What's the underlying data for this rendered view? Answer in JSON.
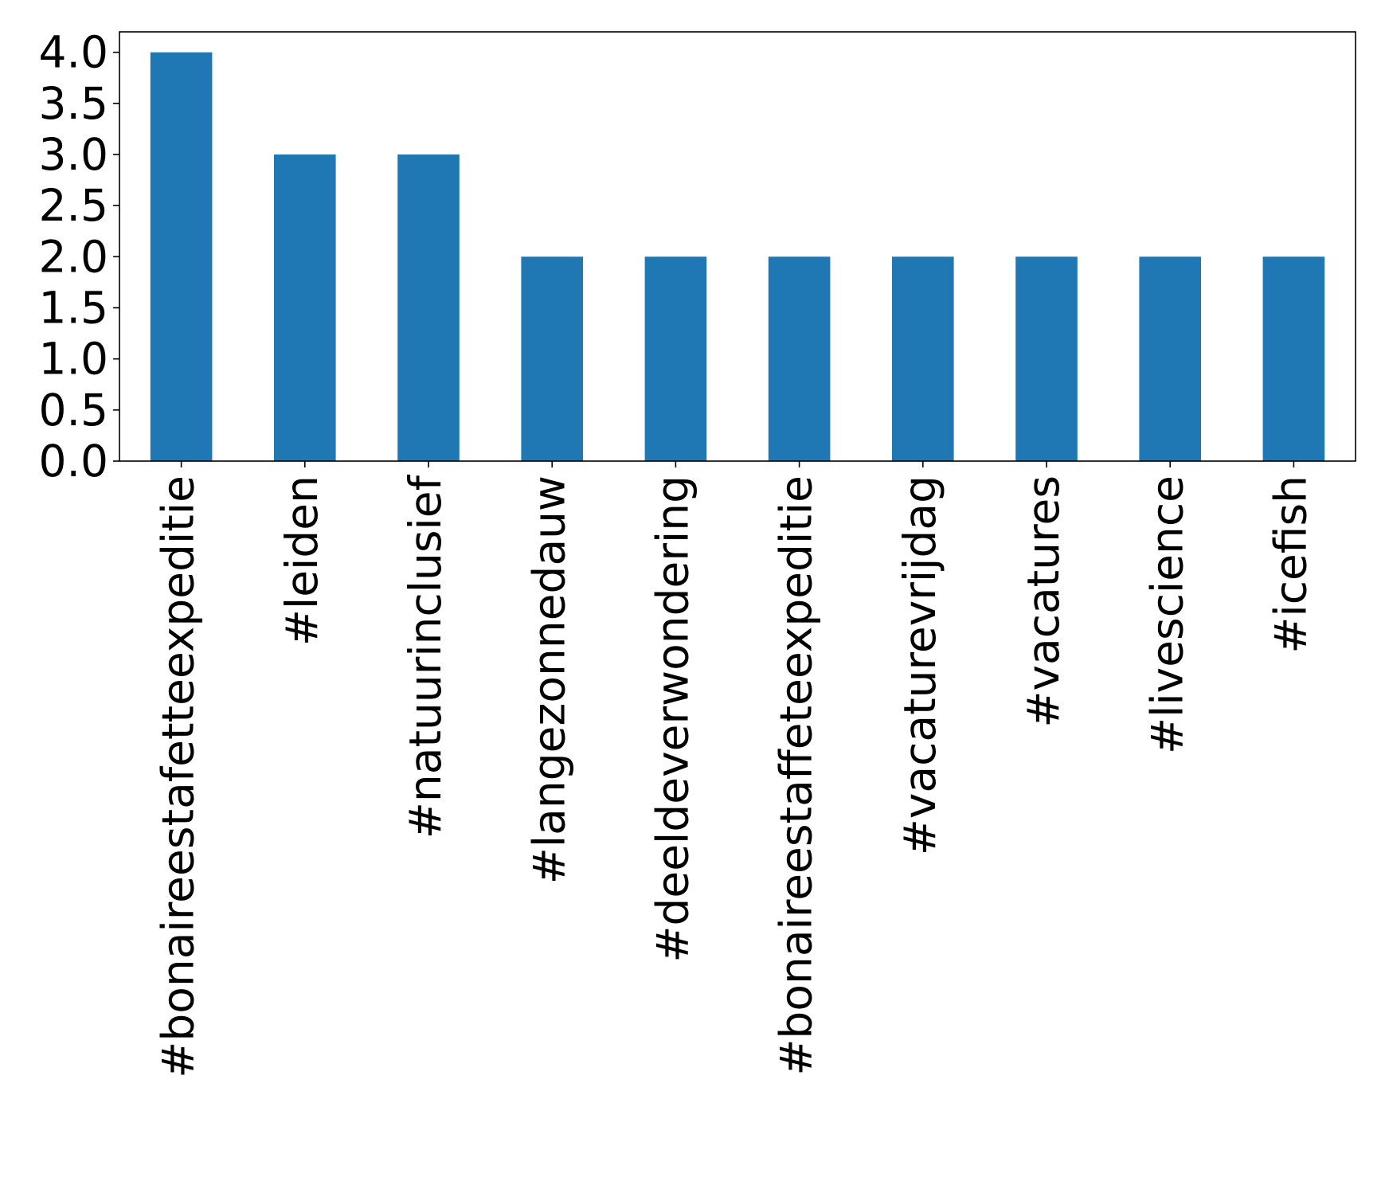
{
  "chart_data": {
    "type": "bar",
    "categories": [
      "#bonaireestafetteexpeditie",
      "#leiden",
      "#natuurinclusief",
      "#langezonnedauw",
      "#deeldeverwondering",
      "#bonaireestaffeteexpeditie",
      "#vacaturevrijdag",
      "#vacatures",
      "#livescience",
      "#icefish"
    ],
    "values": [
      4,
      3,
      3,
      2,
      2,
      2,
      2,
      2,
      2,
      2
    ],
    "title": "",
    "xlabel": "",
    "ylabel": "",
    "ylim": [
      0,
      4.2
    ],
    "yticks": [
      "0.0",
      "0.5",
      "1.0",
      "1.5",
      "2.0",
      "2.5",
      "3.0",
      "3.5",
      "4.0"
    ],
    "grid": false,
    "legend": "none",
    "colors": {
      "bar": "#1f77b4",
      "axis": "#000000",
      "background": "#ffffff"
    }
  }
}
